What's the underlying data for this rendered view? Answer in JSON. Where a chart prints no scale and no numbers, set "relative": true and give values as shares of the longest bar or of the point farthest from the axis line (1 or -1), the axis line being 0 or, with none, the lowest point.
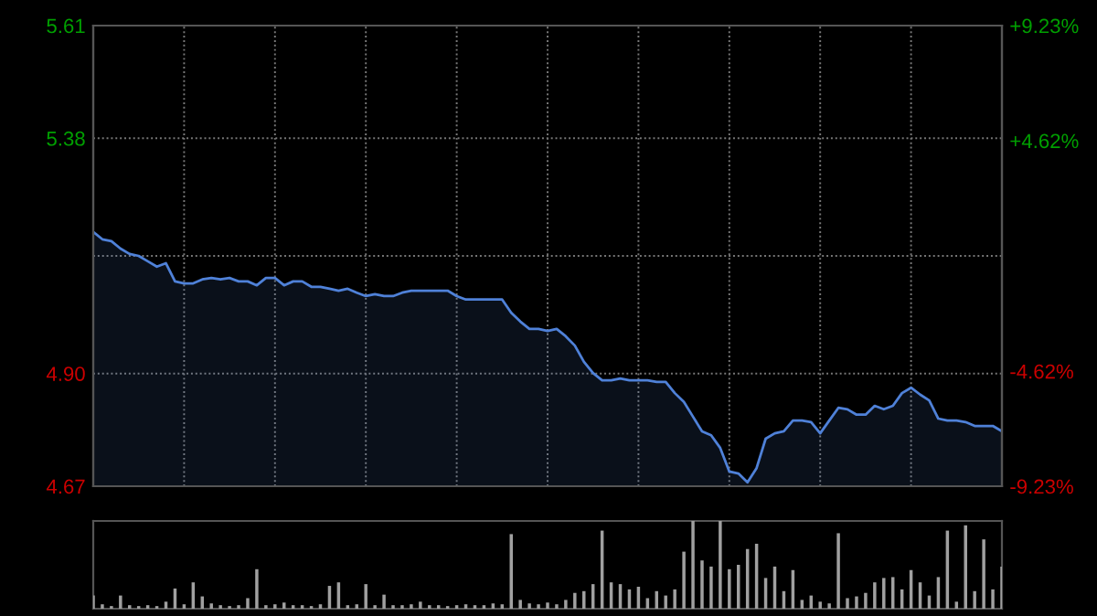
{
  "chart_data": [
    {
      "type": "area",
      "categories": [
        null,
        null,
        null,
        null,
        null,
        null,
        null,
        null,
        null,
        null,
        null,
        null,
        null,
        null,
        null,
        null,
        null,
        null,
        null,
        null,
        null,
        null,
        null,
        null,
        null,
        null,
        null,
        null,
        null,
        null,
        null,
        null,
        null,
        null,
        null,
        null,
        null,
        null,
        null,
        null,
        null,
        null,
        null,
        null,
        null,
        null,
        null,
        null,
        null,
        null,
        null,
        null,
        null,
        null,
        null,
        null,
        null,
        null,
        null,
        null,
        null,
        null,
        null,
        null,
        null,
        null,
        null,
        null,
        null,
        null,
        null,
        null,
        null,
        null,
        null,
        null,
        null,
        null,
        null,
        null,
        null,
        null,
        null,
        null,
        null,
        null,
        null,
        null,
        null,
        null,
        null,
        null,
        null,
        null,
        null,
        null,
        null,
        null,
        null,
        null,
        null
      ],
      "series": [
        {
          "color": "#4f81d8",
          "values": [
            5.189,
            5.174,
            5.17,
            5.155,
            5.144,
            5.14,
            5.129,
            5.118,
            5.125,
            5.088,
            5.084,
            5.084,
            5.092,
            5.095,
            5.092,
            5.095,
            5.088,
            5.088,
            5.08,
            5.095,
            5.095,
            5.08,
            5.088,
            5.088,
            5.077,
            5.077,
            5.073,
            5.069,
            5.073,
            5.065,
            5.058,
            5.062,
            5.058,
            5.058,
            5.065,
            5.069,
            5.069,
            5.069,
            5.069,
            5.069,
            5.058,
            5.051,
            5.051,
            5.051,
            5.051,
            5.051,
            5.024,
            5.006,
            4.991,
            4.991,
            4.987,
            4.991,
            4.976,
            4.957,
            4.924,
            4.901,
            4.886,
            4.886,
            4.89,
            4.886,
            4.886,
            4.886,
            4.883,
            4.883,
            4.86,
            4.842,
            4.812,
            4.782,
            4.774,
            4.748,
            4.7,
            4.696,
            4.678,
            4.707,
            4.767,
            4.778,
            4.782,
            4.804,
            4.804,
            4.801,
            4.778,
            4.804,
            4.83,
            4.827,
            4.816,
            4.816,
            4.834,
            4.827,
            4.834,
            4.86,
            4.871,
            4.857,
            4.845,
            4.808,
            4.804,
            4.804,
            4.801,
            4.793,
            4.793,
            4.793,
            4.782
          ]
        }
      ],
      "ylim": [
        4.67,
        5.61
      ],
      "yticks": [
        4.67,
        {
          "value": 4.9,
          "label": "4.90"
        },
        {
          "value": 5.14,
          "label": null
        },
        5.38,
        5.61
      ],
      "y2lim": [
        -9.23,
        9.23
      ],
      "y2ticks": [
        {
          "value": -9.23,
          "label": "-9.23%"
        },
        {
          "value": -4.62,
          "label": "-4.62%"
        },
        {
          "value": 0,
          "label": null
        },
        {
          "value": 4.62,
          "label": "+4.62%"
        },
        {
          "value": 9.23,
          "label": "+9.23%"
        }
      ],
      "grid": true,
      "tick_labels": "y"
    },
    {
      "type": "bar",
      "relative": true,
      "tick_labels": false,
      "categories": [
        null,
        null,
        null,
        null,
        null,
        null,
        null,
        null,
        null,
        null,
        null,
        null,
        null,
        null,
        null,
        null,
        null,
        null,
        null,
        null,
        null,
        null,
        null,
        null,
        null,
        null,
        null,
        null,
        null,
        null,
        null,
        null,
        null,
        null,
        null,
        null,
        null,
        null,
        null,
        null,
        null,
        null,
        null,
        null,
        null,
        null,
        null,
        null,
        null,
        null,
        null,
        null,
        null,
        null,
        null,
        null,
        null,
        null,
        null,
        null,
        null,
        null,
        null,
        null,
        null,
        null,
        null,
        null,
        null,
        null,
        null,
        null,
        null,
        null,
        null,
        null,
        null,
        null,
        null,
        null,
        null,
        null,
        null,
        null,
        null,
        null,
        null,
        null,
        null,
        null,
        null,
        null,
        null,
        null,
        null,
        null,
        null,
        null,
        null,
        null,
        null
      ],
      "series": [
        {
          "color": "#a0a0a0",
          "values": [
            0.15,
            0.05,
            0.03,
            0.15,
            0.04,
            0.03,
            0.04,
            0.03,
            0.08,
            0.23,
            0.05,
            0.3,
            0.14,
            0.06,
            0.04,
            0.03,
            0.04,
            0.12,
            0.45,
            0.04,
            0.05,
            0.07,
            0.04,
            0.04,
            0.03,
            0.05,
            0.26,
            0.3,
            0.04,
            0.05,
            0.28,
            0.04,
            0.16,
            0.04,
            0.04,
            0.05,
            0.08,
            0.04,
            0.04,
            0.03,
            0.04,
            0.05,
            0.04,
            0.04,
            0.06,
            0.05,
            0.85,
            0.1,
            0.06,
            0.05,
            0.07,
            0.05,
            0.1,
            0.18,
            0.2,
            0.28,
            0.89,
            0.3,
            0.28,
            0.22,
            0.25,
            0.12,
            0.2,
            0.15,
            0.22,
            0.65,
            1.0,
            0.55,
            0.48,
            1.0,
            0.45,
            0.5,
            0.68,
            0.74,
            0.35,
            0.48,
            0.2,
            0.44,
            0.1,
            0.15,
            0.08,
            0.06,
            0.86,
            0.12,
            0.14,
            0.18,
            0.3,
            0.35,
            0.36,
            0.22,
            0.44,
            0.3,
            0.15,
            0.36,
            0.89,
            0.08,
            0.95,
            0.2,
            0.79,
            0.22,
            0.48
          ]
        }
      ]
    }
  ]
}
